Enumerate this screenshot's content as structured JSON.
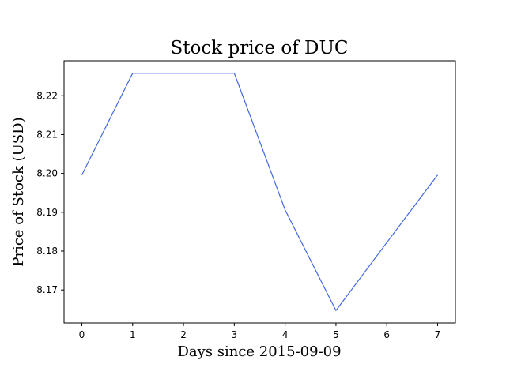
{
  "chart_data": {
    "type": "line",
    "title": "Stock price of DUC",
    "xlabel": "Days since 2015-09-09",
    "ylabel": "Price of Stock (USD)",
    "x": [
      0,
      1,
      2,
      3,
      4,
      5,
      6,
      7
    ],
    "series": [
      {
        "values": [
          8.1996,
          8.2258,
          8.2258,
          8.2258,
          8.1906,
          8.1647,
          8.1822,
          8.1996
        ],
        "color": "#4169e1"
      }
    ],
    "xlim": [
      -0.35,
      7.35
    ],
    "ylim": [
      8.1615,
      8.229
    ],
    "xticks": [
      0,
      1,
      2,
      3,
      4,
      5,
      6,
      7
    ],
    "yticks": [
      8.17,
      8.18,
      8.19,
      8.2,
      8.21,
      8.22
    ],
    "ytick_labels": [
      "8.17",
      "8.18",
      "8.19",
      "8.20",
      "8.21",
      "8.22"
    ],
    "grid": false,
    "legend": "none"
  }
}
